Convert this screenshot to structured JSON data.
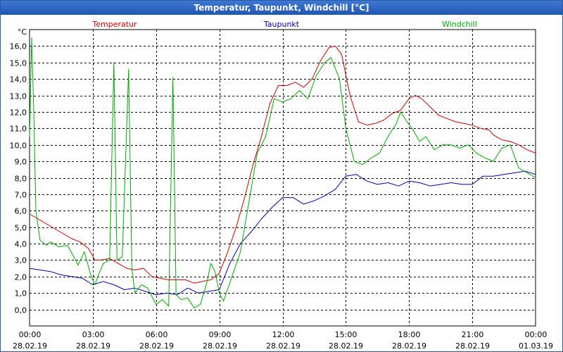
{
  "window": {
    "title": "Temperatur, Taupunkt, Windchill [°C]"
  },
  "chart_data": {
    "type": "line",
    "title": "Temperatur, Taupunkt, Windchill [°C]",
    "unit_label": "°C",
    "ylim": [
      -1.0,
      17.0
    ],
    "xlim": [
      0,
      24
    ],
    "y_ticks": [
      {
        "value": 0,
        "label": "0,0"
      },
      {
        "value": 1,
        "label": "1,0"
      },
      {
        "value": 2,
        "label": "2,0"
      },
      {
        "value": 3,
        "label": "3,0"
      },
      {
        "value": 4,
        "label": "4,0"
      },
      {
        "value": 5,
        "label": "5,0"
      },
      {
        "value": 6,
        "label": "6,0"
      },
      {
        "value": 7,
        "label": "7,0"
      },
      {
        "value": 8,
        "label": "8,0"
      },
      {
        "value": 9,
        "label": "9,0"
      },
      {
        "value": 10,
        "label": "10,0"
      },
      {
        "value": 11,
        "label": "11,0"
      },
      {
        "value": 12,
        "label": "12,0"
      },
      {
        "value": 13,
        "label": "13,0"
      },
      {
        "value": 14,
        "label": "14,0"
      },
      {
        "value": 15,
        "label": "15,0"
      },
      {
        "value": 16,
        "label": "16,0"
      }
    ],
    "x_ticks": [
      {
        "value": 0,
        "time": "00:00",
        "date": "28.02.19"
      },
      {
        "value": 3,
        "time": "03:00",
        "date": "28.02.19"
      },
      {
        "value": 6,
        "time": "06:00",
        "date": "28.02.19"
      },
      {
        "value": 9,
        "time": "09:00",
        "date": "28.02.19"
      },
      {
        "value": 12,
        "time": "12:00",
        "date": "28.02.19"
      },
      {
        "value": 15,
        "time": "15:00",
        "date": "28.02.19"
      },
      {
        "value": 18,
        "time": "18:00",
        "date": "28.02.19"
      },
      {
        "value": 21,
        "time": "21:00",
        "date": "28.02.19"
      },
      {
        "value": 24,
        "time": "00:00",
        "date": "01.03.19"
      }
    ],
    "grid": true,
    "series": [
      {
        "name": "Temperatur",
        "color": "#cc0000",
        "legend_position": "top-left",
        "points": [
          [
            0.0,
            5.8
          ],
          [
            0.4,
            5.5
          ],
          [
            0.8,
            5.2
          ],
          [
            1.2,
            4.9
          ],
          [
            1.6,
            4.6
          ],
          [
            2.0,
            4.3
          ],
          [
            2.4,
            4.1
          ],
          [
            2.8,
            3.7
          ],
          [
            3.1,
            3.0
          ],
          [
            3.4,
            3.0
          ],
          [
            3.8,
            3.1
          ],
          [
            4.2,
            2.8
          ],
          [
            4.6,
            2.5
          ],
          [
            5.0,
            2.4
          ],
          [
            5.4,
            2.5
          ],
          [
            5.8,
            2.0
          ],
          [
            6.2,
            1.9
          ],
          [
            6.6,
            1.8
          ],
          [
            7.0,
            1.8
          ],
          [
            7.4,
            1.8
          ],
          [
            7.8,
            1.6
          ],
          [
            8.2,
            1.7
          ],
          [
            8.6,
            1.8
          ],
          [
            9.0,
            2.2
          ],
          [
            9.4,
            3.5
          ],
          [
            9.8,
            5.0
          ],
          [
            10.2,
            6.8
          ],
          [
            10.6,
            8.8
          ],
          [
            11.0,
            10.5
          ],
          [
            11.4,
            12.5
          ],
          [
            11.8,
            13.6
          ],
          [
            12.2,
            13.6
          ],
          [
            12.6,
            13.8
          ],
          [
            13.0,
            13.5
          ],
          [
            13.4,
            14.0
          ],
          [
            13.8,
            15.1
          ],
          [
            14.2,
            15.9
          ],
          [
            14.5,
            16.0
          ],
          [
            14.8,
            15.5
          ],
          [
            15.2,
            13.0
          ],
          [
            15.6,
            11.4
          ],
          [
            16.0,
            11.2
          ],
          [
            16.4,
            11.3
          ],
          [
            16.8,
            11.5
          ],
          [
            17.2,
            11.9
          ],
          [
            17.6,
            12.1
          ],
          [
            18.0,
            12.8
          ],
          [
            18.3,
            13.0
          ],
          [
            18.6,
            12.8
          ],
          [
            19.0,
            12.3
          ],
          [
            19.4,
            11.8
          ],
          [
            19.8,
            11.6
          ],
          [
            20.2,
            11.4
          ],
          [
            20.6,
            11.3
          ],
          [
            21.0,
            11.2
          ],
          [
            21.4,
            11.0
          ],
          [
            21.8,
            10.9
          ],
          [
            22.0,
            10.6
          ],
          [
            22.4,
            10.3
          ],
          [
            22.8,
            10.2
          ],
          [
            23.2,
            10.0
          ],
          [
            23.6,
            9.7
          ],
          [
            24.0,
            9.5
          ]
        ]
      },
      {
        "name": "Taupunkt",
        "color": "#0000aa",
        "legend_position": "top-center",
        "points": [
          [
            0.0,
            2.5
          ],
          [
            0.5,
            2.4
          ],
          [
            1.0,
            2.3
          ],
          [
            1.5,
            2.1
          ],
          [
            2.0,
            2.0
          ],
          [
            2.5,
            1.9
          ],
          [
            3.0,
            1.5
          ],
          [
            3.5,
            1.7
          ],
          [
            4.0,
            1.5
          ],
          [
            4.5,
            1.2
          ],
          [
            5.0,
            1.3
          ],
          [
            5.5,
            1.1
          ],
          [
            6.0,
            0.9
          ],
          [
            6.5,
            1.0
          ],
          [
            7.0,
            0.9
          ],
          [
            7.5,
            1.3
          ],
          [
            8.0,
            1.0
          ],
          [
            8.5,
            1.1
          ],
          [
            9.0,
            1.2
          ],
          [
            9.5,
            2.8
          ],
          [
            10.0,
            4.0
          ],
          [
            10.5,
            4.7
          ],
          [
            11.0,
            5.5
          ],
          [
            11.5,
            6.2
          ],
          [
            12.0,
            6.8
          ],
          [
            12.5,
            6.8
          ],
          [
            13.0,
            6.4
          ],
          [
            13.5,
            6.6
          ],
          [
            14.0,
            6.9
          ],
          [
            14.5,
            7.3
          ],
          [
            15.0,
            8.1
          ],
          [
            15.5,
            8.2
          ],
          [
            16.0,
            7.8
          ],
          [
            16.5,
            7.6
          ],
          [
            17.0,
            7.7
          ],
          [
            17.5,
            7.5
          ],
          [
            18.0,
            7.8
          ],
          [
            18.5,
            7.7
          ],
          [
            19.0,
            7.5
          ],
          [
            19.5,
            7.6
          ],
          [
            20.0,
            7.7
          ],
          [
            20.5,
            7.6
          ],
          [
            21.0,
            7.6
          ],
          [
            21.5,
            8.1
          ],
          [
            22.0,
            8.1
          ],
          [
            22.5,
            8.2
          ],
          [
            23.0,
            8.3
          ],
          [
            23.5,
            8.4
          ],
          [
            24.0,
            8.2
          ]
        ]
      },
      {
        "name": "Windchill",
        "color": "#00aa00",
        "legend_position": "top-right",
        "points": [
          [
            0.0,
            10.5
          ],
          [
            0.1,
            16.5
          ],
          [
            0.2,
            12.0
          ],
          [
            0.3,
            6.0
          ],
          [
            0.5,
            4.2
          ],
          [
            0.8,
            3.9
          ],
          [
            1.0,
            4.1
          ],
          [
            1.4,
            3.8
          ],
          [
            1.8,
            3.9
          ],
          [
            2.1,
            3.2
          ],
          [
            2.3,
            2.7
          ],
          [
            2.6,
            3.5
          ],
          [
            2.9,
            2.1
          ],
          [
            3.1,
            1.5
          ],
          [
            3.3,
            2.2
          ],
          [
            3.5,
            2.8
          ],
          [
            3.8,
            3.0
          ],
          [
            4.0,
            15.0
          ],
          [
            4.15,
            3.0
          ],
          [
            4.4,
            3.2
          ],
          [
            4.7,
            14.6
          ],
          [
            4.85,
            2.5
          ],
          [
            5.0,
            1.0
          ],
          [
            5.3,
            1.5
          ],
          [
            5.6,
            1.3
          ],
          [
            5.8,
            0.8
          ],
          [
            6.0,
            0.3
          ],
          [
            6.3,
            0.6
          ],
          [
            6.6,
            0.2
          ],
          [
            6.8,
            14.1
          ],
          [
            6.95,
            0.9
          ],
          [
            7.2,
            0.6
          ],
          [
            7.5,
            0.7
          ],
          [
            7.8,
            0.1
          ],
          [
            8.1,
            0.3
          ],
          [
            8.4,
            1.6
          ],
          [
            8.6,
            2.8
          ],
          [
            8.8,
            2.3
          ],
          [
            9.0,
            1.0
          ],
          [
            9.2,
            0.5
          ],
          [
            9.6,
            2.0
          ],
          [
            10.0,
            3.5
          ],
          [
            10.4,
            6.5
          ],
          [
            10.8,
            9.5
          ],
          [
            11.2,
            10.5
          ],
          [
            11.6,
            12.8
          ],
          [
            12.0,
            12.6
          ],
          [
            12.4,
            12.8
          ],
          [
            12.8,
            13.3
          ],
          [
            13.2,
            12.8
          ],
          [
            13.6,
            14.2
          ],
          [
            14.0,
            15.0
          ],
          [
            14.3,
            15.3
          ],
          [
            14.7,
            14.0
          ],
          [
            15.0,
            11.0
          ],
          [
            15.4,
            9.0
          ],
          [
            15.8,
            8.8
          ],
          [
            16.2,
            9.2
          ],
          [
            16.6,
            9.5
          ],
          [
            17.0,
            10.5
          ],
          [
            17.4,
            11.3
          ],
          [
            17.6,
            12.0
          ],
          [
            17.9,
            11.4
          ],
          [
            18.2,
            10.9
          ],
          [
            18.5,
            10.2
          ],
          [
            18.8,
            10.5
          ],
          [
            19.2,
            9.7
          ],
          [
            19.6,
            10.0
          ],
          [
            20.0,
            10.0
          ],
          [
            20.4,
            9.8
          ],
          [
            20.8,
            10.0
          ],
          [
            21.2,
            9.5
          ],
          [
            21.6,
            9.2
          ],
          [
            22.0,
            9.0
          ],
          [
            22.4,
            9.8
          ],
          [
            22.8,
            10.0
          ],
          [
            23.2,
            8.6
          ],
          [
            23.6,
            8.3
          ],
          [
            24.0,
            8.0
          ]
        ]
      }
    ]
  }
}
